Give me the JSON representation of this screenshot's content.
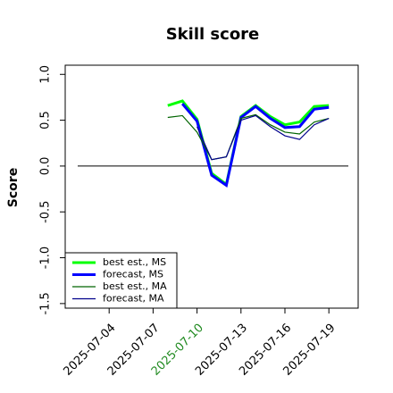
{
  "chart_data": {
    "type": "line",
    "title": "Skill score",
    "y_label": "Score",
    "x": [
      "2025-07-08",
      "2025-07-09",
      "2025-07-10",
      "2025-07-11",
      "2025-07-12",
      "2025-07-13",
      "2025-07-14",
      "2025-07-15",
      "2025-07-16",
      "2025-07-17",
      "2025-07-18",
      "2025-07-19"
    ],
    "series": [
      {
        "name": "best est., MS",
        "color": "#00ff00",
        "width": 3,
        "values": [
          0.66,
          0.71,
          0.51,
          -0.08,
          -0.2,
          0.54,
          0.66,
          0.54,
          0.45,
          0.48,
          0.65,
          0.66
        ]
      },
      {
        "name": "forecast, MS",
        "color": "#0000ff",
        "width": 3,
        "values": [
          null,
          0.68,
          0.49,
          -0.1,
          -0.21,
          0.53,
          0.65,
          0.52,
          0.42,
          0.43,
          0.62,
          0.64
        ]
      },
      {
        "name": "best est., MA",
        "color": "#006400",
        "width": 1.2,
        "values": [
          0.53,
          0.55,
          0.37,
          0.07,
          0.1,
          0.52,
          0.56,
          0.45,
          0.37,
          0.35,
          0.48,
          0.52
        ]
      },
      {
        "name": "forecast, MA",
        "color": "#00008b",
        "width": 1.2,
        "values": [
          null,
          null,
          0.43,
          0.07,
          0.1,
          0.5,
          0.55,
          0.43,
          0.33,
          0.29,
          0.45,
          0.52
        ]
      }
    ],
    "xlim": [
      "2025-07-01",
      "2025-07-21"
    ],
    "xticks": [
      "2025-07-04",
      "2025-07-07",
      "2025-07-10",
      "2025-07-13",
      "2025-07-16",
      "2025-07-19"
    ],
    "highlight_xtick": "2025-07-10",
    "highlight_color": "#228b22",
    "ylim": [
      -1.55,
      1.1
    ],
    "yticks": [
      -1.5,
      {
        "value": -1,
        "label": "-1.0"
      },
      -0.5,
      {
        "value": 0,
        "label": "0.0"
      },
      0.5,
      {
        "value": 1,
        "label": "1.0"
      }
    ],
    "hline": 0,
    "legend": "bottom-left"
  }
}
